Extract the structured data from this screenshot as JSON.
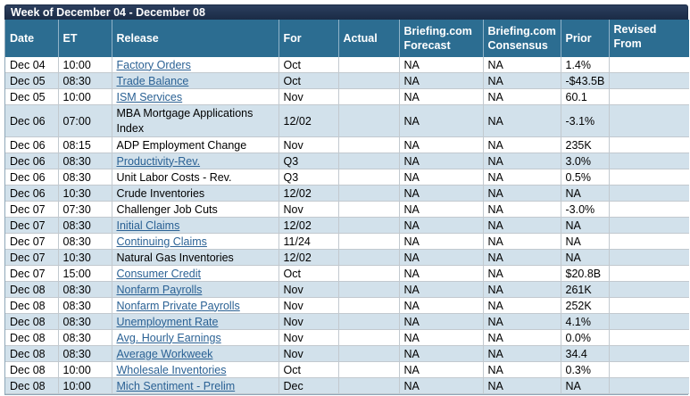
{
  "title": "Week of December 04 - December 08",
  "columns": [
    "Date",
    "ET",
    "Release",
    "For",
    "Actual",
    "Briefing.com Forecast",
    "Briefing.com Consensus",
    "Prior",
    "Revised From"
  ],
  "rows": [
    {
      "date": "Dec 04",
      "et": "10:00",
      "release": "Factory Orders",
      "link": true,
      "for": "Oct",
      "actual": "",
      "forecast": "NA",
      "consensus": "NA",
      "prior": "1.4%",
      "revised": ""
    },
    {
      "date": "Dec 05",
      "et": "08:30",
      "release": "Trade Balance",
      "link": true,
      "for": "Oct",
      "actual": "",
      "forecast": "NA",
      "consensus": "NA",
      "prior": "-$43.5B",
      "revised": ""
    },
    {
      "date": "Dec 05",
      "et": "10:00",
      "release": "ISM Services",
      "link": true,
      "for": "Nov",
      "actual": "",
      "forecast": "NA",
      "consensus": "NA",
      "prior": "60.1",
      "revised": ""
    },
    {
      "date": "Dec 06",
      "et": "07:00",
      "release": "MBA Mortgage Applications Index",
      "link": false,
      "for": "12/02",
      "actual": "",
      "forecast": "NA",
      "consensus": "NA",
      "prior": "-3.1%",
      "revised": ""
    },
    {
      "date": "Dec 06",
      "et": "08:15",
      "release": "ADP Employment Change",
      "link": false,
      "for": "Nov",
      "actual": "",
      "forecast": "NA",
      "consensus": "NA",
      "prior": "235K",
      "revised": ""
    },
    {
      "date": "Dec 06",
      "et": "08:30",
      "release": "Productivity-Rev.",
      "link": true,
      "for": "Q3",
      "actual": "",
      "forecast": "NA",
      "consensus": "NA",
      "prior": "3.0%",
      "revised": ""
    },
    {
      "date": "Dec 06",
      "et": "08:30",
      "release": "Unit Labor Costs - Rev.",
      "link": false,
      "for": "Q3",
      "actual": "",
      "forecast": "NA",
      "consensus": "NA",
      "prior": "0.5%",
      "revised": ""
    },
    {
      "date": "Dec 06",
      "et": "10:30",
      "release": "Crude Inventories",
      "link": false,
      "for": "12/02",
      "actual": "",
      "forecast": "NA",
      "consensus": "NA",
      "prior": "NA",
      "revised": ""
    },
    {
      "date": "Dec 07",
      "et": "07:30",
      "release": "Challenger Job Cuts",
      "link": false,
      "for": "Nov",
      "actual": "",
      "forecast": "NA",
      "consensus": "NA",
      "prior": "-3.0%",
      "revised": ""
    },
    {
      "date": "Dec 07",
      "et": "08:30",
      "release": "Initial Claims",
      "link": true,
      "for": "12/02",
      "actual": "",
      "forecast": "NA",
      "consensus": "NA",
      "prior": "NA",
      "revised": ""
    },
    {
      "date": "Dec 07",
      "et": "08:30",
      "release": "Continuing Claims",
      "link": true,
      "for": "11/24",
      "actual": "",
      "forecast": "NA",
      "consensus": "NA",
      "prior": "NA",
      "revised": ""
    },
    {
      "date": "Dec 07",
      "et": "10:30",
      "release": "Natural Gas Inventories",
      "link": false,
      "for": "12/02",
      "actual": "",
      "forecast": "NA",
      "consensus": "NA",
      "prior": "NA",
      "revised": ""
    },
    {
      "date": "Dec 07",
      "et": "15:00",
      "release": "Consumer Credit",
      "link": true,
      "for": "Oct",
      "actual": "",
      "forecast": "NA",
      "consensus": "NA",
      "prior": "$20.8B",
      "revised": ""
    },
    {
      "date": "Dec 08",
      "et": "08:30",
      "release": "Nonfarm Payrolls",
      "link": true,
      "for": "Nov",
      "actual": "",
      "forecast": "NA",
      "consensus": "NA",
      "prior": "261K",
      "revised": ""
    },
    {
      "date": "Dec 08",
      "et": "08:30",
      "release": "Nonfarm Private Payrolls",
      "link": true,
      "for": "Nov",
      "actual": "",
      "forecast": "NA",
      "consensus": "NA",
      "prior": "252K",
      "revised": ""
    },
    {
      "date": "Dec 08",
      "et": "08:30",
      "release": "Unemployment Rate",
      "link": true,
      "for": "Nov",
      "actual": "",
      "forecast": "NA",
      "consensus": "NA",
      "prior": "4.1%",
      "revised": ""
    },
    {
      "date": "Dec 08",
      "et": "08:30",
      "release": "Avg. Hourly Earnings",
      "link": true,
      "for": "Nov",
      "actual": "",
      "forecast": "NA",
      "consensus": "NA",
      "prior": "0.0%",
      "revised": ""
    },
    {
      "date": "Dec 08",
      "et": "08:30",
      "release": "Average Workweek",
      "link": true,
      "for": "Nov",
      "actual": "",
      "forecast": "NA",
      "consensus": "NA",
      "prior": "34.4",
      "revised": ""
    },
    {
      "date": "Dec 08",
      "et": "10:00",
      "release": "Wholesale Inventories",
      "link": true,
      "for": "Oct",
      "actual": "",
      "forecast": "NA",
      "consensus": "NA",
      "prior": "0.3%",
      "revised": ""
    },
    {
      "date": "Dec 08",
      "et": "10:00",
      "release": "Mich Sentiment - Prelim",
      "link": true,
      "for": "Dec",
      "actual": "",
      "forecast": "NA",
      "consensus": "NA",
      "prior": "NA",
      "revised": ""
    }
  ]
}
